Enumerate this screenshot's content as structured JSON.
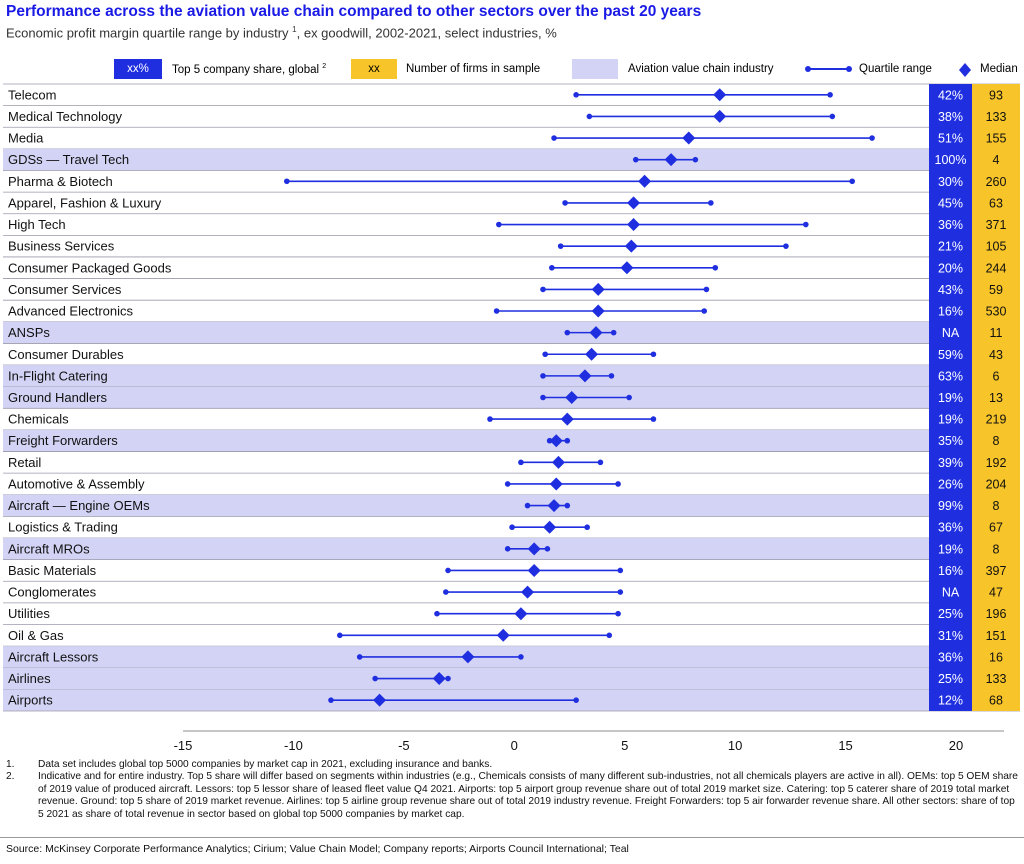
{
  "title": "Performance across the aviation value chain compared to other sectors over the past 20 years",
  "subtitle": "Economic profit margin quartile range by industry",
  "subtitle_sup": "1",
  "subtitle_tail": ", ex goodwill, 2002-2021, select industries, %",
  "legend": {
    "share_box": "xx%",
    "share_label": "Top 5 company share, global",
    "share_sup": "2",
    "firms_box": "xx",
    "firms_label": "Number of firms in sample",
    "aviation_label": "Aviation value chain industry",
    "quartile_label": "Quartile range",
    "median_label": "Median"
  },
  "colors": {
    "title": "#1a1ae6",
    "series": "#1f2fe0",
    "aviation_band": "#d3d3f5",
    "share_column": "#1f2fe0",
    "firms_column": "#f7c42a"
  },
  "chart_data": {
    "type": "dot-range",
    "xlim": [
      -15,
      20
    ],
    "xticks": [
      -15,
      -10,
      -5,
      0,
      5,
      10,
      15,
      20
    ],
    "grid": false,
    "rows": [
      {
        "industry": "Telecom",
        "aviation": false,
        "low": 2.8,
        "median": 9.3,
        "high": 14.3,
        "share": "42%",
        "firms": "93"
      },
      {
        "industry": "Medical Technology",
        "aviation": false,
        "low": 3.4,
        "median": 9.3,
        "high": 14.4,
        "share": "38%",
        "firms": "133"
      },
      {
        "industry": "Media",
        "aviation": false,
        "low": 1.8,
        "median": 7.9,
        "high": 16.2,
        "share": "51%",
        "firms": "155"
      },
      {
        "industry": "GDSs — Travel Tech",
        "aviation": true,
        "low": 5.5,
        "median": 7.1,
        "high": 8.2,
        "share": "100%",
        "firms": "4"
      },
      {
        "industry": "Pharma & Biotech",
        "aviation": false,
        "low": -10.3,
        "median": 5.9,
        "high": 15.3,
        "share": "30%",
        "firms": "260"
      },
      {
        "industry": "Apparel, Fashion & Luxury",
        "aviation": false,
        "low": 2.3,
        "median": 5.4,
        "high": 8.9,
        "share": "45%",
        "firms": "63"
      },
      {
        "industry": "High Tech",
        "aviation": false,
        "low": -0.7,
        "median": 5.4,
        "high": 13.2,
        "share": "36%",
        "firms": "371"
      },
      {
        "industry": "Business Services",
        "aviation": false,
        "low": 2.1,
        "median": 5.3,
        "high": 12.3,
        "share": "21%",
        "firms": "105"
      },
      {
        "industry": "Consumer Packaged Goods",
        "aviation": false,
        "low": 1.7,
        "median": 5.1,
        "high": 9.1,
        "share": "20%",
        "firms": "244"
      },
      {
        "industry": "Consumer Services",
        "aviation": false,
        "low": 1.3,
        "median": 3.8,
        "high": 8.7,
        "share": "43%",
        "firms": "59"
      },
      {
        "industry": "Advanced Electronics",
        "aviation": false,
        "low": -0.8,
        "median": 3.8,
        "high": 8.6,
        "share": "16%",
        "firms": "530"
      },
      {
        "industry": "ANSPs",
        "aviation": true,
        "low": 2.4,
        "median": 3.7,
        "high": 4.5,
        "share": "NA",
        "firms": "11"
      },
      {
        "industry": "Consumer Durables",
        "aviation": false,
        "low": 1.4,
        "median": 3.5,
        "high": 6.3,
        "share": "59%",
        "firms": "43"
      },
      {
        "industry": "In-Flight Catering",
        "aviation": true,
        "low": 1.3,
        "median": 3.2,
        "high": 4.4,
        "share": "63%",
        "firms": "6"
      },
      {
        "industry": "Ground Handlers",
        "aviation": true,
        "low": 1.3,
        "median": 2.6,
        "high": 5.2,
        "share": "19%",
        "firms": "13"
      },
      {
        "industry": "Chemicals",
        "aviation": false,
        "low": -1.1,
        "median": 2.4,
        "high": 6.3,
        "share": "19%",
        "firms": "219"
      },
      {
        "industry": "Freight Forwarders",
        "aviation": true,
        "low": 1.6,
        "median": 1.9,
        "high": 2.4,
        "share": "35%",
        "firms": "8"
      },
      {
        "industry": "Retail",
        "aviation": false,
        "low": 0.3,
        "median": 2.0,
        "high": 3.9,
        "share": "39%",
        "firms": "192"
      },
      {
        "industry": "Automotive & Assembly",
        "aviation": false,
        "low": -0.3,
        "median": 1.9,
        "high": 4.7,
        "share": "26%",
        "firms": "204"
      },
      {
        "industry": "Aircraft — Engine OEMs",
        "aviation": true,
        "low": 0.6,
        "median": 1.8,
        "high": 2.4,
        "share": "99%",
        "firms": "8"
      },
      {
        "industry": "Logistics & Trading",
        "aviation": false,
        "low": -0.1,
        "median": 1.6,
        "high": 3.3,
        "share": "36%",
        "firms": "67"
      },
      {
        "industry": "Aircraft MROs",
        "aviation": true,
        "low": -0.3,
        "median": 0.9,
        "high": 1.5,
        "share": "19%",
        "firms": "8"
      },
      {
        "industry": "Basic Materials",
        "aviation": false,
        "low": -3.0,
        "median": 0.9,
        "high": 4.8,
        "share": "16%",
        "firms": "397"
      },
      {
        "industry": "Conglomerates",
        "aviation": false,
        "low": -3.1,
        "median": 0.6,
        "high": 4.8,
        "share": "NA",
        "firms": "47"
      },
      {
        "industry": "Utilities",
        "aviation": false,
        "low": -3.5,
        "median": 0.3,
        "high": 4.7,
        "share": "25%",
        "firms": "196"
      },
      {
        "industry": "Oil & Gas",
        "aviation": false,
        "low": -7.9,
        "median": -0.5,
        "high": 4.3,
        "share": "31%",
        "firms": "151"
      },
      {
        "industry": "Aircraft Lessors",
        "aviation": true,
        "low": -7.0,
        "median": -2.1,
        "high": 0.3,
        "share": "36%",
        "firms": "16"
      },
      {
        "industry": "Airlines",
        "aviation": true,
        "low": -6.3,
        "median": -3.4,
        "high": -3.0,
        "share": "25%",
        "firms": "133"
      },
      {
        "industry": "Airports",
        "aviation": true,
        "low": -8.3,
        "median": -6.1,
        "high": 2.8,
        "share": "12%",
        "firms": "68"
      }
    ]
  },
  "footnotes": [
    {
      "num": "1.",
      "text": "Data set includes global top 5000 companies by market cap in 2021, excluding insurance and banks."
    },
    {
      "num": "2.",
      "text": "Indicative and for entire industry. Top 5 share will differ based on segments within industries (e.g., Chemicals consists of many different sub-industries, not all chemicals players are active in all). OEMs: top 5 OEM share of 2019 value of produced aircraft. Lessors: top 5 lessor share of leased fleet value Q4 2021. Airports: top 5 airport group revenue share out of total 2019 market size. Catering: top 5 caterer share of 2019 total market revenue. Ground: top 5 share of 2019 market revenue. Airlines: top 5 airline group revenue share out of total 2019 industry revenue. Freight Forwarders: top 5 air forwarder revenue share. All other sectors: share of top 5 2021 as share of total revenue in sector based on global top 5000 companies by market cap."
    }
  ],
  "source": "Source: McKinsey Corporate Performance Analytics; Cirium; Value Chain Model; Company reports; Airports Council International; Teal"
}
